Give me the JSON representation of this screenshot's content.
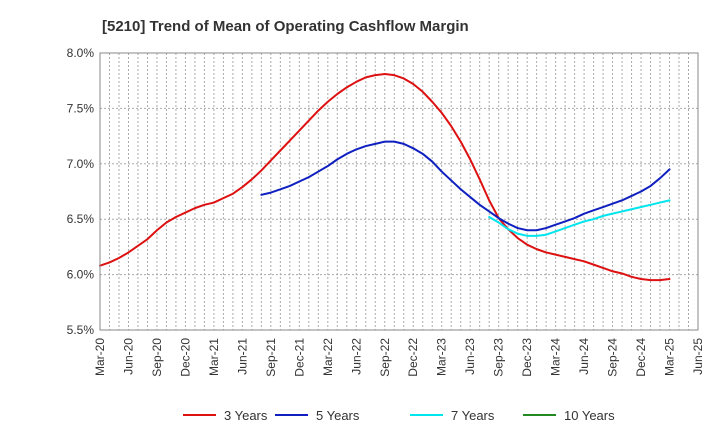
{
  "chart_data": {
    "type": "line",
    "title": "[5210]  Trend of Mean of Operating Cashflow Margin",
    "xlabel": "",
    "ylabel": "",
    "x_ticks": [
      "Mar-20",
      "Jun-20",
      "Sep-20",
      "Dec-20",
      "Mar-21",
      "Jun-21",
      "Sep-21",
      "Dec-21",
      "Mar-22",
      "Jun-22",
      "Sep-22",
      "Dec-22",
      "Mar-23",
      "Jun-23",
      "Sep-23",
      "Dec-23",
      "Mar-24",
      "Jun-24",
      "Sep-24",
      "Dec-24",
      "Mar-25",
      "Jun-25"
    ],
    "y_ticks": [
      "5.5%",
      "6.0%",
      "6.5%",
      "7.0%",
      "7.5%",
      "8.0%"
    ],
    "y_tick_values": [
      5.5,
      6.0,
      6.5,
      7.0,
      7.5,
      8.0
    ],
    "ylim": [
      5.5,
      8.0
    ],
    "grid": true,
    "legend_position": "bottom",
    "series": [
      {
        "name": "3 Years",
        "color": "#dd1111",
        "x": [
          "Mar-20",
          "Apr-20",
          "May-20",
          "Jun-20",
          "Jul-20",
          "Aug-20",
          "Sep-20",
          "Oct-20",
          "Nov-20",
          "Dec-20",
          "Jan-21",
          "Feb-21",
          "Mar-21",
          "Apr-21",
          "May-21",
          "Jun-21",
          "Jul-21",
          "Aug-21",
          "Sep-21",
          "Oct-21",
          "Nov-21",
          "Dec-21",
          "Jan-22",
          "Feb-22",
          "Mar-22",
          "Apr-22",
          "May-22",
          "Jun-22",
          "Jul-22",
          "Aug-22",
          "Sep-22",
          "Oct-22",
          "Nov-22",
          "Dec-22",
          "Jan-23",
          "Feb-23",
          "Mar-23",
          "Apr-23",
          "May-23",
          "Jun-23",
          "Jul-23",
          "Aug-23",
          "Sep-23",
          "Oct-23",
          "Nov-23",
          "Dec-23",
          "Jan-24",
          "Feb-24",
          "Mar-24",
          "Apr-24",
          "May-24",
          "Jun-24",
          "Jul-24",
          "Aug-24",
          "Sep-24",
          "Oct-24",
          "Nov-24",
          "Dec-24",
          "Jan-25",
          "Feb-25",
          "Mar-25"
        ],
        "values": [
          6.08,
          6.11,
          6.15,
          6.2,
          6.26,
          6.32,
          6.4,
          6.47,
          6.52,
          6.56,
          6.6,
          6.63,
          6.65,
          6.69,
          6.73,
          6.79,
          6.86,
          6.94,
          7.03,
          7.12,
          7.21,
          7.3,
          7.39,
          7.48,
          7.56,
          7.63,
          7.69,
          7.74,
          7.78,
          7.8,
          7.81,
          7.8,
          7.77,
          7.72,
          7.65,
          7.56,
          7.46,
          7.34,
          7.2,
          7.04,
          6.86,
          6.67,
          6.51,
          6.41,
          6.33,
          6.27,
          6.23,
          6.2,
          6.18,
          6.16,
          6.14,
          6.12,
          6.09,
          6.06,
          6.03,
          6.01,
          5.98,
          5.96,
          5.95,
          5.95,
          5.96
        ]
      },
      {
        "name": "5 Years",
        "color": "#1020c0",
        "x": [
          "Aug-21",
          "Sep-21",
          "Oct-21",
          "Nov-21",
          "Dec-21",
          "Jan-22",
          "Feb-22",
          "Mar-22",
          "Apr-22",
          "May-22",
          "Jun-22",
          "Jul-22",
          "Aug-22",
          "Sep-22",
          "Oct-22",
          "Nov-22",
          "Dec-22",
          "Jan-23",
          "Feb-23",
          "Mar-23",
          "Apr-23",
          "May-23",
          "Jun-23",
          "Jul-23",
          "Aug-23",
          "Sep-23",
          "Oct-23",
          "Nov-23",
          "Dec-23",
          "Jan-24",
          "Feb-24",
          "Mar-24",
          "Apr-24",
          "May-24",
          "Jun-24",
          "Jul-24",
          "Aug-24",
          "Sep-24",
          "Oct-24",
          "Nov-24",
          "Dec-24",
          "Jan-25",
          "Feb-25",
          "Mar-25"
        ],
        "values": [
          6.72,
          6.74,
          6.77,
          6.8,
          6.84,
          6.88,
          6.93,
          6.98,
          7.04,
          7.09,
          7.13,
          7.16,
          7.18,
          7.2,
          7.2,
          7.18,
          7.14,
          7.09,
          7.02,
          6.93,
          6.85,
          6.77,
          6.7,
          6.63,
          6.57,
          6.51,
          6.46,
          6.42,
          6.4,
          6.4,
          6.42,
          6.45,
          6.48,
          6.51,
          6.55,
          6.58,
          6.61,
          6.64,
          6.67,
          6.71,
          6.75,
          6.8,
          6.87,
          6.95
        ]
      },
      {
        "name": "7 Years",
        "color": "#00e5ee",
        "x": [
          "Aug-23",
          "Sep-23",
          "Oct-23",
          "Nov-23",
          "Dec-23",
          "Jan-24",
          "Feb-24",
          "Mar-24",
          "Apr-24",
          "May-24",
          "Jun-24",
          "Jul-24",
          "Aug-24",
          "Sep-24",
          "Oct-24",
          "Nov-24",
          "Dec-24",
          "Jan-25",
          "Feb-25",
          "Mar-25"
        ],
        "values": [
          6.52,
          6.47,
          6.41,
          6.37,
          6.35,
          6.35,
          6.36,
          6.39,
          6.42,
          6.45,
          6.48,
          6.5,
          6.53,
          6.55,
          6.57,
          6.59,
          6.61,
          6.63,
          6.65,
          6.67
        ]
      },
      {
        "name": "10 Years",
        "color": "#228822",
        "x": [],
        "values": []
      }
    ]
  }
}
